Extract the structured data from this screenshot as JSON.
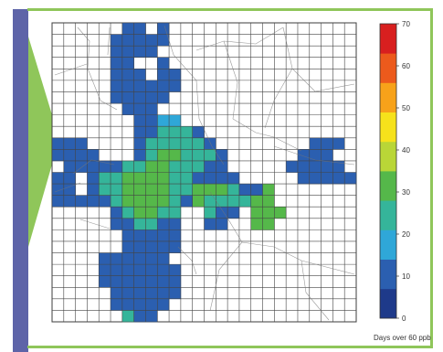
{
  "chart_data": {
    "type": "heatmap",
    "title": "",
    "colorbar": {
      "label": "Days over 60 ppb",
      "ticks": [
        0,
        10,
        20,
        30,
        40,
        50,
        60,
        70
      ],
      "range": [
        0,
        70
      ],
      "colors": [
        "#1e3a8a",
        "#2b5fb0",
        "#2fa7d8",
        "#35b59a",
        "#55b84a",
        "#b9d637",
        "#f6e21b",
        "#f7a21a",
        "#ec5a1c",
        "#d81f1f"
      ]
    },
    "grid": {
      "cols": 26,
      "rows": 26,
      "cells": [
        [
          6,
          0,
          10
        ],
        [
          7,
          0,
          10
        ],
        [
          9,
          0,
          10
        ],
        [
          5,
          1,
          10
        ],
        [
          6,
          1,
          10
        ],
        [
          7,
          1,
          10
        ],
        [
          8,
          1,
          10
        ],
        [
          9,
          1,
          10
        ],
        [
          5,
          2,
          10
        ],
        [
          6,
          2,
          10
        ],
        [
          7,
          2,
          10
        ],
        [
          8,
          2,
          10
        ],
        [
          5,
          3,
          10
        ],
        [
          6,
          3,
          10
        ],
        [
          9,
          3,
          10
        ],
        [
          5,
          4,
          10
        ],
        [
          6,
          4,
          10
        ],
        [
          7,
          4,
          10
        ],
        [
          9,
          4,
          10
        ],
        [
          10,
          4,
          10
        ],
        [
          5,
          5,
          10
        ],
        [
          6,
          5,
          10
        ],
        [
          7,
          5,
          10
        ],
        [
          8,
          5,
          10
        ],
        [
          9,
          5,
          10
        ],
        [
          10,
          5,
          10
        ],
        [
          5,
          6,
          10
        ],
        [
          6,
          6,
          10
        ],
        [
          7,
          6,
          10
        ],
        [
          8,
          6,
          10
        ],
        [
          9,
          6,
          10
        ],
        [
          6,
          7,
          10
        ],
        [
          7,
          7,
          10
        ],
        [
          8,
          7,
          10
        ],
        [
          7,
          8,
          10
        ],
        [
          8,
          8,
          10
        ],
        [
          9,
          8,
          15
        ],
        [
          10,
          8,
          15
        ],
        [
          7,
          9,
          10
        ],
        [
          8,
          9,
          10
        ],
        [
          9,
          9,
          22
        ],
        [
          10,
          9,
          22
        ],
        [
          11,
          9,
          22
        ],
        [
          12,
          9,
          10
        ],
        [
          0,
          10,
          10
        ],
        [
          1,
          10,
          10
        ],
        [
          2,
          10,
          10
        ],
        [
          7,
          10,
          10
        ],
        [
          8,
          10,
          22
        ],
        [
          9,
          10,
          22
        ],
        [
          10,
          10,
          22
        ],
        [
          11,
          10,
          22
        ],
        [
          12,
          10,
          22
        ],
        [
          13,
          10,
          10
        ],
        [
          22,
          10,
          10
        ],
        [
          23,
          10,
          10
        ],
        [
          24,
          10,
          10
        ],
        [
          0,
          11,
          10
        ],
        [
          1,
          11,
          10
        ],
        [
          2,
          11,
          10
        ],
        [
          3,
          11,
          10
        ],
        [
          7,
          11,
          10
        ],
        [
          8,
          11,
          22
        ],
        [
          9,
          11,
          28
        ],
        [
          10,
          11,
          28
        ],
        [
          11,
          11,
          22
        ],
        [
          12,
          11,
          22
        ],
        [
          13,
          11,
          22
        ],
        [
          14,
          11,
          10
        ],
        [
          21,
          11,
          10
        ],
        [
          22,
          11,
          10
        ],
        [
          23,
          11,
          10
        ],
        [
          1,
          12,
          10
        ],
        [
          2,
          12,
          10
        ],
        [
          3,
          12,
          10
        ],
        [
          4,
          12,
          10
        ],
        [
          5,
          12,
          10
        ],
        [
          6,
          12,
          22
        ],
        [
          7,
          12,
          22
        ],
        [
          8,
          12,
          30
        ],
        [
          9,
          12,
          30
        ],
        [
          10,
          12,
          25
        ],
        [
          11,
          12,
          22
        ],
        [
          12,
          12,
          22
        ],
        [
          13,
          12,
          10
        ],
        [
          14,
          12,
          10
        ],
        [
          20,
          12,
          10
        ],
        [
          21,
          12,
          10
        ],
        [
          22,
          12,
          10
        ],
        [
          23,
          12,
          10
        ],
        [
          24,
          12,
          10
        ],
        [
          0,
          13,
          10
        ],
        [
          1,
          13,
          10
        ],
        [
          3,
          13,
          10
        ],
        [
          4,
          13,
          22
        ],
        [
          5,
          13,
          22
        ],
        [
          6,
          13,
          30
        ],
        [
          7,
          13,
          32
        ],
        [
          8,
          13,
          33
        ],
        [
          9,
          13,
          30
        ],
        [
          10,
          13,
          22
        ],
        [
          11,
          13,
          22
        ],
        [
          12,
          13,
          10
        ],
        [
          13,
          13,
          10
        ],
        [
          14,
          13,
          10
        ],
        [
          15,
          13,
          10
        ],
        [
          21,
          13,
          10
        ],
        [
          22,
          13,
          10
        ],
        [
          23,
          13,
          10
        ],
        [
          24,
          13,
          10
        ],
        [
          25,
          13,
          10
        ],
        [
          0,
          14,
          10
        ],
        [
          1,
          14,
          10
        ],
        [
          3,
          14,
          10
        ],
        [
          4,
          14,
          22
        ],
        [
          5,
          14,
          22
        ],
        [
          6,
          14,
          28
        ],
        [
          7,
          14,
          33
        ],
        [
          8,
          14,
          34
        ],
        [
          9,
          14,
          30
        ],
        [
          10,
          14,
          22
        ],
        [
          11,
          14,
          25
        ],
        [
          12,
          14,
          30
        ],
        [
          13,
          14,
          30
        ],
        [
          14,
          14,
          30
        ],
        [
          15,
          14,
          22
        ],
        [
          16,
          14,
          10
        ],
        [
          17,
          14,
          10
        ],
        [
          18,
          14,
          30
        ],
        [
          0,
          15,
          10
        ],
        [
          1,
          15,
          10
        ],
        [
          2,
          15,
          10
        ],
        [
          3,
          15,
          10
        ],
        [
          4,
          15,
          10
        ],
        [
          5,
          15,
          22
        ],
        [
          6,
          15,
          30
        ],
        [
          7,
          15,
          32
        ],
        [
          8,
          15,
          33
        ],
        [
          9,
          15,
          30
        ],
        [
          10,
          15,
          22
        ],
        [
          11,
          15,
          10
        ],
        [
          12,
          15,
          30
        ],
        [
          13,
          15,
          22
        ],
        [
          14,
          15,
          22
        ],
        [
          15,
          15,
          25
        ],
        [
          16,
          15,
          22
        ],
        [
          17,
          15,
          30
        ],
        [
          18,
          15,
          30
        ],
        [
          5,
          16,
          10
        ],
        [
          6,
          16,
          22
        ],
        [
          7,
          16,
          30
        ],
        [
          8,
          16,
          30
        ],
        [
          9,
          16,
          22
        ],
        [
          10,
          16,
          22
        ],
        [
          13,
          16,
          22
        ],
        [
          14,
          16,
          10
        ],
        [
          15,
          16,
          10
        ],
        [
          17,
          16,
          30
        ],
        [
          18,
          16,
          30
        ],
        [
          19,
          16,
          30
        ],
        [
          5,
          17,
          10
        ],
        [
          6,
          17,
          10
        ],
        [
          7,
          17,
          22
        ],
        [
          8,
          17,
          22
        ],
        [
          9,
          17,
          10
        ],
        [
          10,
          17,
          10
        ],
        [
          13,
          17,
          10
        ],
        [
          14,
          17,
          10
        ],
        [
          17,
          17,
          30
        ],
        [
          18,
          17,
          30
        ],
        [
          6,
          18,
          10
        ],
        [
          7,
          18,
          10
        ],
        [
          8,
          18,
          10
        ],
        [
          9,
          18,
          10
        ],
        [
          10,
          18,
          10
        ],
        [
          6,
          19,
          10
        ],
        [
          7,
          19,
          10
        ],
        [
          8,
          19,
          10
        ],
        [
          9,
          19,
          10
        ],
        [
          10,
          19,
          10
        ],
        [
          4,
          20,
          10
        ],
        [
          5,
          20,
          10
        ],
        [
          6,
          20,
          10
        ],
        [
          7,
          20,
          10
        ],
        [
          8,
          20,
          10
        ],
        [
          9,
          20,
          10
        ],
        [
          4,
          21,
          10
        ],
        [
          5,
          21,
          10
        ],
        [
          6,
          21,
          10
        ],
        [
          7,
          21,
          10
        ],
        [
          8,
          21,
          10
        ],
        [
          9,
          21,
          10
        ],
        [
          10,
          21,
          10
        ],
        [
          4,
          22,
          10
        ],
        [
          5,
          22,
          10
        ],
        [
          6,
          22,
          10
        ],
        [
          7,
          22,
          10
        ],
        [
          8,
          22,
          10
        ],
        [
          9,
          22,
          10
        ],
        [
          10,
          22,
          10
        ],
        [
          5,
          23,
          10
        ],
        [
          6,
          23,
          10
        ],
        [
          7,
          23,
          10
        ],
        [
          8,
          23,
          10
        ],
        [
          9,
          23,
          10
        ],
        [
          10,
          23,
          10
        ],
        [
          5,
          24,
          10
        ],
        [
          6,
          24,
          10
        ],
        [
          7,
          24,
          10
        ],
        [
          8,
          24,
          10
        ],
        [
          9,
          24,
          10
        ],
        [
          6,
          25,
          22
        ],
        [
          7,
          25,
          10
        ],
        [
          8,
          25,
          10
        ]
      ]
    }
  }
}
